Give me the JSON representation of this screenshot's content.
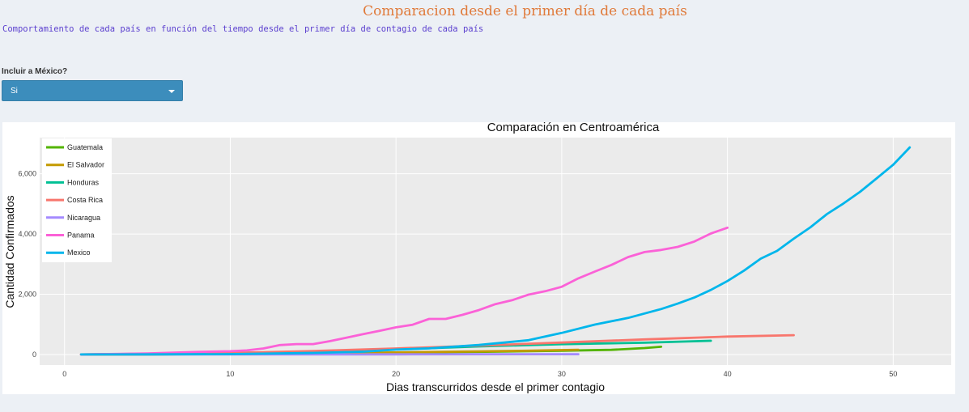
{
  "header": {
    "title": "Comparacion desde el primer día de cada país",
    "subtitle": "Comportamiento de cada país en función del tiempo desde el primer día de contagio de cada país"
  },
  "filter": {
    "label": "Incluir a México?",
    "selected": "Si",
    "color": "#3c8dbc"
  },
  "chart_data": {
    "type": "line",
    "title": "Comparación en Centroamérica",
    "xlabel": "Dias transcurridos desde el primer contagio",
    "ylabel": "Cantidad Confirmados",
    "xlim": [
      -1.5,
      53.5
    ],
    "ylim": [
      -350,
      7200
    ],
    "x_ticks": [
      0,
      10,
      20,
      30,
      40,
      50
    ],
    "y_ticks": [
      0,
      2000,
      4000,
      6000
    ],
    "x_tick_labels": [
      "0",
      "10",
      "20",
      "30",
      "40",
      "50"
    ],
    "y_tick_labels": [
      "0",
      "2,000",
      "4,000",
      "6,000"
    ],
    "grid": true,
    "legend_position": "top-left",
    "series": [
      {
        "name": "Guatemala",
        "color": "#53b400",
        "x": [
          1,
          5,
          10,
          15,
          20,
          25,
          30,
          33,
          35,
          36
        ],
        "y": [
          1,
          6,
          20,
          34,
          61,
          87,
          126,
          156,
          214,
          257
        ]
      },
      {
        "name": "El Salvador",
        "color": "#c49a00",
        "x": [
          1,
          5,
          10,
          15,
          20,
          25,
          28,
          31
        ],
        "y": [
          1,
          3,
          19,
          32,
          69,
          103,
          125,
          159
        ]
      },
      {
        "name": "Honduras",
        "color": "#00c094",
        "x": [
          1,
          5,
          10,
          15,
          20,
          25,
          30,
          35,
          39
        ],
        "y": [
          2,
          26,
          52,
          95,
          172,
          268,
          343,
          392,
          457
        ]
      },
      {
        "name": "Costa Rica",
        "color": "#f8766d",
        "x": [
          1,
          5,
          10,
          15,
          20,
          25,
          30,
          35,
          40,
          44
        ],
        "y": [
          1,
          23,
          50,
          117,
          201,
          295,
          396,
          502,
          595,
          642
        ]
      },
      {
        "name": "Nicaragua",
        "color": "#a58aff",
        "x": [
          1,
          10,
          20,
          27,
          31
        ],
        "y": [
          1,
          2,
          5,
          9,
          10
        ]
      },
      {
        "name": "Panama",
        "color": "#fb61d7",
        "x": [
          1,
          5,
          8,
          10,
          11,
          12,
          13,
          14,
          15,
          16,
          17,
          18,
          19,
          20,
          21,
          22,
          23,
          24,
          25,
          26,
          27,
          28,
          29,
          30,
          31,
          32,
          33,
          34,
          35,
          36,
          37,
          38,
          39,
          40
        ],
        "y": [
          1,
          36,
          86,
          109,
          137,
          200,
          313,
          345,
          345,
          443,
          558,
          674,
          786,
          901,
          989,
          1181,
          1181,
          1317,
          1475,
          1673,
          1801,
          1988,
          2100,
          2249,
          2528,
          2752,
          2974,
          3234,
          3400,
          3472,
          3574,
          3751,
          4016,
          4210
        ]
      },
      {
        "name": "Mexico",
        "color": "#00b6eb",
        "x": [
          1,
          5,
          10,
          15,
          18,
          20,
          22,
          25,
          28,
          30,
          32,
          34,
          36,
          37,
          38,
          39,
          40,
          41,
          42,
          43,
          44,
          45,
          46,
          47,
          48,
          49,
          50,
          51
        ],
        "y": [
          1,
          5,
          12,
          53,
          93,
          164,
          203,
          316,
          475,
          717,
          993,
          1215,
          1510,
          1688,
          1890,
          2143,
          2439,
          2785,
          3181,
          3441,
          3844,
          4219,
          4661,
          5014,
          5399,
          5847,
          6297,
          6875
        ]
      }
    ]
  }
}
